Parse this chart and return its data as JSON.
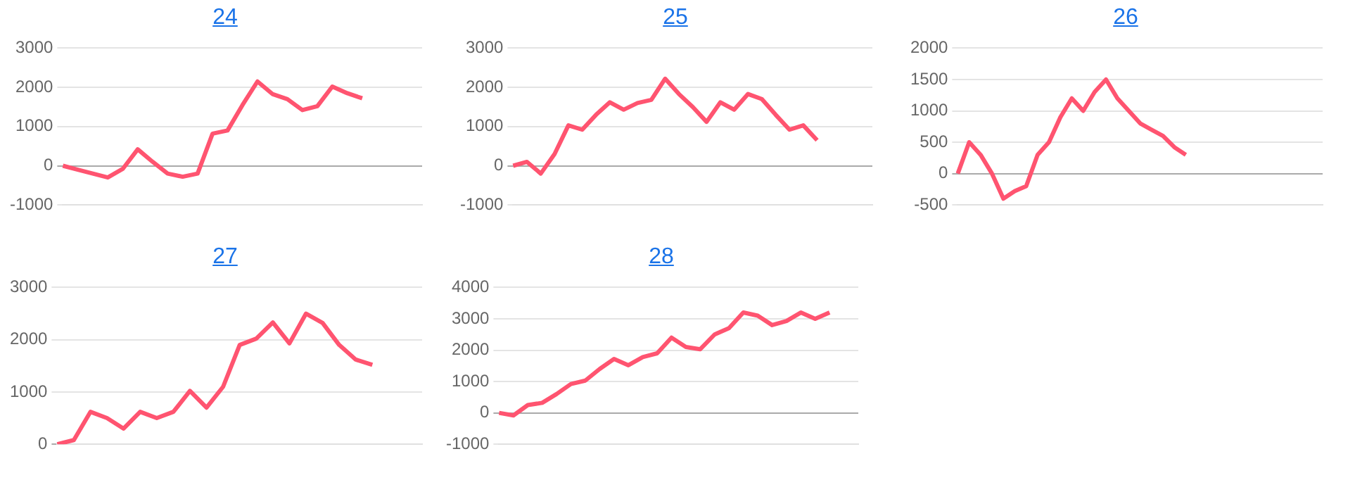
{
  "chart_data": [
    {
      "type": "line",
      "title": "24",
      "categories": [
        null,
        null,
        null,
        null,
        null,
        null,
        null,
        null,
        null,
        null,
        null,
        null,
        null,
        null,
        null,
        null,
        null,
        null,
        null,
        null,
        null,
        null,
        null,
        null,
        null
      ],
      "series": [
        {
          "color": "#ff5470",
          "values": [
            0,
            -100,
            -200,
            -300,
            -80,
            420,
            100,
            -200,
            -280,
            -200,
            820,
            900,
            1550,
            2150,
            1830,
            1700,
            1420,
            1520,
            2020,
            1850,
            1720,
            null,
            null,
            null,
            null
          ]
        }
      ],
      "ylim": [
        -1000,
        3000
      ],
      "yticks": [
        -1000,
        0,
        1000,
        2000,
        3000
      ],
      "grid": "y",
      "legend": false,
      "marker": "none"
    },
    {
      "type": "line",
      "title": "25",
      "categories": [
        null,
        null,
        null,
        null,
        null,
        null,
        null,
        null,
        null,
        null,
        null,
        null,
        null,
        null,
        null,
        null,
        null,
        null,
        null,
        null,
        null,
        null,
        null,
        null,
        null,
        null,
        null
      ],
      "series": [
        {
          "color": "#ff5470",
          "values": [
            0,
            100,
            -200,
            300,
            1030,
            920,
            1300,
            1620,
            1430,
            1600,
            1680,
            2220,
            1830,
            1500,
            1120,
            1620,
            1430,
            1830,
            1700,
            1300,
            920,
            1030,
            650,
            null,
            null,
            null,
            null
          ]
        }
      ],
      "ylim": [
        -1000,
        3000
      ],
      "yticks": [
        -1000,
        0,
        1000,
        2000,
        3000
      ],
      "grid": "y",
      "legend": false,
      "marker": "none"
    },
    {
      "type": "line",
      "title": "26",
      "categories": [
        null,
        null,
        null,
        null,
        null,
        null,
        null,
        null,
        null,
        null,
        null,
        null,
        null,
        null,
        null,
        null,
        null,
        null,
        null,
        null,
        null,
        null,
        null,
        null,
        null,
        null,
        null,
        null,
        null,
        null,
        null,
        null,
        null
      ],
      "series": [
        {
          "color": "#ff5470",
          "values": [
            0,
            500,
            300,
            0,
            -400,
            -280,
            -200,
            300,
            500,
            900,
            1200,
            1000,
            1300,
            1500,
            1200,
            1000,
            800,
            700,
            600,
            420,
            300,
            null,
            null,
            null,
            null,
            null,
            null,
            null,
            null,
            null,
            null,
            null,
            null
          ]
        }
      ],
      "ylim": [
        -500,
        2000
      ],
      "yticks": [
        -500,
        0,
        500,
        1000,
        1500,
        2000
      ],
      "grid": "y",
      "legend": false,
      "marker": "none"
    },
    {
      "type": "line",
      "title": "27",
      "categories": [
        null,
        null,
        null,
        null,
        null,
        null,
        null,
        null,
        null,
        null,
        null,
        null,
        null,
        null,
        null,
        null,
        null,
        null,
        null,
        null,
        null,
        null,
        null
      ],
      "series": [
        {
          "color": "#ff5470",
          "values": [
            0,
            80,
            620,
            500,
            300,
            620,
            500,
            620,
            1020,
            700,
            1100,
            1900,
            2020,
            2330,
            1930,
            2500,
            2320,
            1900,
            1620,
            1520,
            null,
            null,
            null
          ]
        }
      ],
      "ylim": [
        0,
        3000
      ],
      "yticks": [
        0,
        1000,
        2000,
        3000
      ],
      "grid": "y",
      "legend": false,
      "marker": "none"
    },
    {
      "type": "line",
      "title": "28",
      "categories": [
        null,
        null,
        null,
        null,
        null,
        null,
        null,
        null,
        null,
        null,
        null,
        null,
        null,
        null,
        null,
        null,
        null,
        null,
        null,
        null,
        null,
        null,
        null,
        null,
        null,
        null
      ],
      "series": [
        {
          "color": "#ff5470",
          "values": [
            0,
            -80,
            250,
            320,
            600,
            920,
            1030,
            1400,
            1720,
            1520,
            1780,
            1900,
            2400,
            2100,
            2030,
            2500,
            2700,
            3200,
            3100,
            2800,
            2930,
            3200,
            3000,
            3200,
            null,
            null
          ]
        }
      ],
      "ylim": [
        -1000,
        4000
      ],
      "yticks": [
        -1000,
        0,
        1000,
        2000,
        3000,
        4000
      ],
      "grid": "y",
      "legend": false,
      "marker": "none"
    }
  ]
}
